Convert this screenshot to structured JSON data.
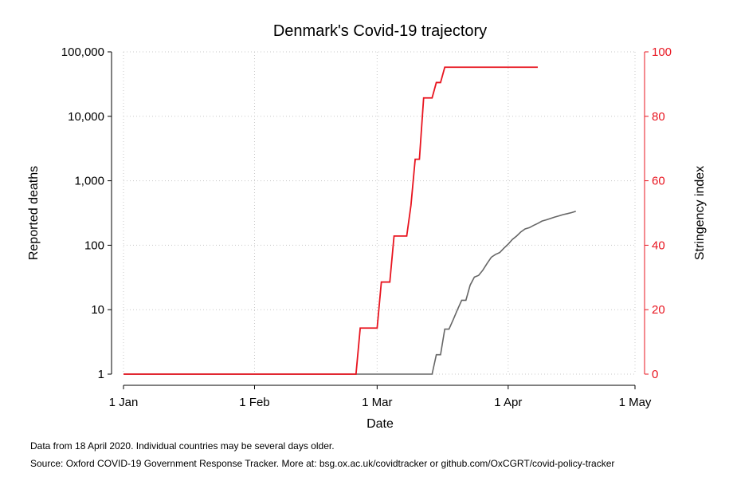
{
  "chart_data": {
    "type": "line",
    "title": "Denmark's Covid-19 trajectory",
    "xlabel": "Date",
    "ylabel_left": "Reported deaths",
    "ylabel_right": "Stringency index",
    "x_ticks": [
      {
        "label": "1 Jan",
        "day": 0
      },
      {
        "label": "1 Feb",
        "day": 31
      },
      {
        "label": "1 Mar",
        "day": 60
      },
      {
        "label": "1 Apr",
        "day": 91
      },
      {
        "label": "1 May",
        "day": 121
      }
    ],
    "y_left_ticks": [
      {
        "label": "1",
        "value": 1
      },
      {
        "label": "10",
        "value": 10
      },
      {
        "label": "100",
        "value": 100
      },
      {
        "label": "1,000",
        "value": 1000
      },
      {
        "label": "10,000",
        "value": 10000
      },
      {
        "label": "100,000",
        "value": 100000
      }
    ],
    "y_right_ticks": [
      {
        "label": "0",
        "value": 0
      },
      {
        "label": "20",
        "value": 20
      },
      {
        "label": "40",
        "value": 40
      },
      {
        "label": "60",
        "value": 60
      },
      {
        "label": "80",
        "value": 80
      },
      {
        "label": "100",
        "value": 100
      }
    ],
    "ylim_left": [
      1,
      100000
    ],
    "ylim_right": [
      0,
      100
    ],
    "xlim": [
      0,
      121
    ],
    "y_left_scale": "log",
    "grid": true,
    "series": [
      {
        "axis": "left",
        "color": "#666666",
        "step": false,
        "points": [
          [
            0,
            1
          ],
          [
            73,
            1
          ],
          [
            74,
            2
          ],
          [
            75,
            2
          ],
          [
            76,
            5
          ],
          [
            77,
            5
          ],
          [
            78,
            7
          ],
          [
            79,
            10
          ],
          [
            80,
            14
          ],
          [
            81,
            14
          ],
          [
            82,
            24
          ],
          [
            83,
            32
          ],
          [
            84,
            34
          ],
          [
            85,
            41
          ],
          [
            86,
            52
          ],
          [
            87,
            65
          ],
          [
            88,
            72
          ],
          [
            89,
            77
          ],
          [
            90,
            90
          ],
          [
            91,
            104
          ],
          [
            92,
            123
          ],
          [
            93,
            139
          ],
          [
            94,
            161
          ],
          [
            95,
            179
          ],
          [
            96,
            187
          ],
          [
            97,
            203
          ],
          [
            98,
            218
          ],
          [
            99,
            237
          ],
          [
            100,
            247
          ],
          [
            101,
            260
          ],
          [
            102,
            273
          ],
          [
            103,
            285
          ],
          [
            104,
            299
          ],
          [
            105,
            309
          ],
          [
            106,
            321
          ],
          [
            107,
            336
          ]
        ]
      },
      {
        "axis": "right",
        "color": "#e8141f",
        "step": true,
        "points": [
          [
            0,
            0
          ],
          [
            55,
            0
          ],
          [
            56,
            14.29
          ],
          [
            60,
            14.29
          ],
          [
            61,
            28.57
          ],
          [
            63,
            28.57
          ],
          [
            64,
            42.86
          ],
          [
            67,
            42.86
          ],
          [
            68,
            52.38
          ],
          [
            69,
            66.67
          ],
          [
            70,
            66.67
          ],
          [
            71,
            85.71
          ],
          [
            73,
            85.71
          ],
          [
            74,
            90.48
          ],
          [
            75,
            90.48
          ],
          [
            76,
            95.24
          ],
          [
            98,
            95.24
          ]
        ]
      }
    ]
  },
  "notes": {
    "line1": "Data from 18 April 2020. Individual countries may be several days older.",
    "line2": "Source: Oxford COVID-19 Government Response Tracker. More at: bsg.ox.ac.uk/covidtracker or github.com/OxCGRT/covid-policy-tracker"
  }
}
